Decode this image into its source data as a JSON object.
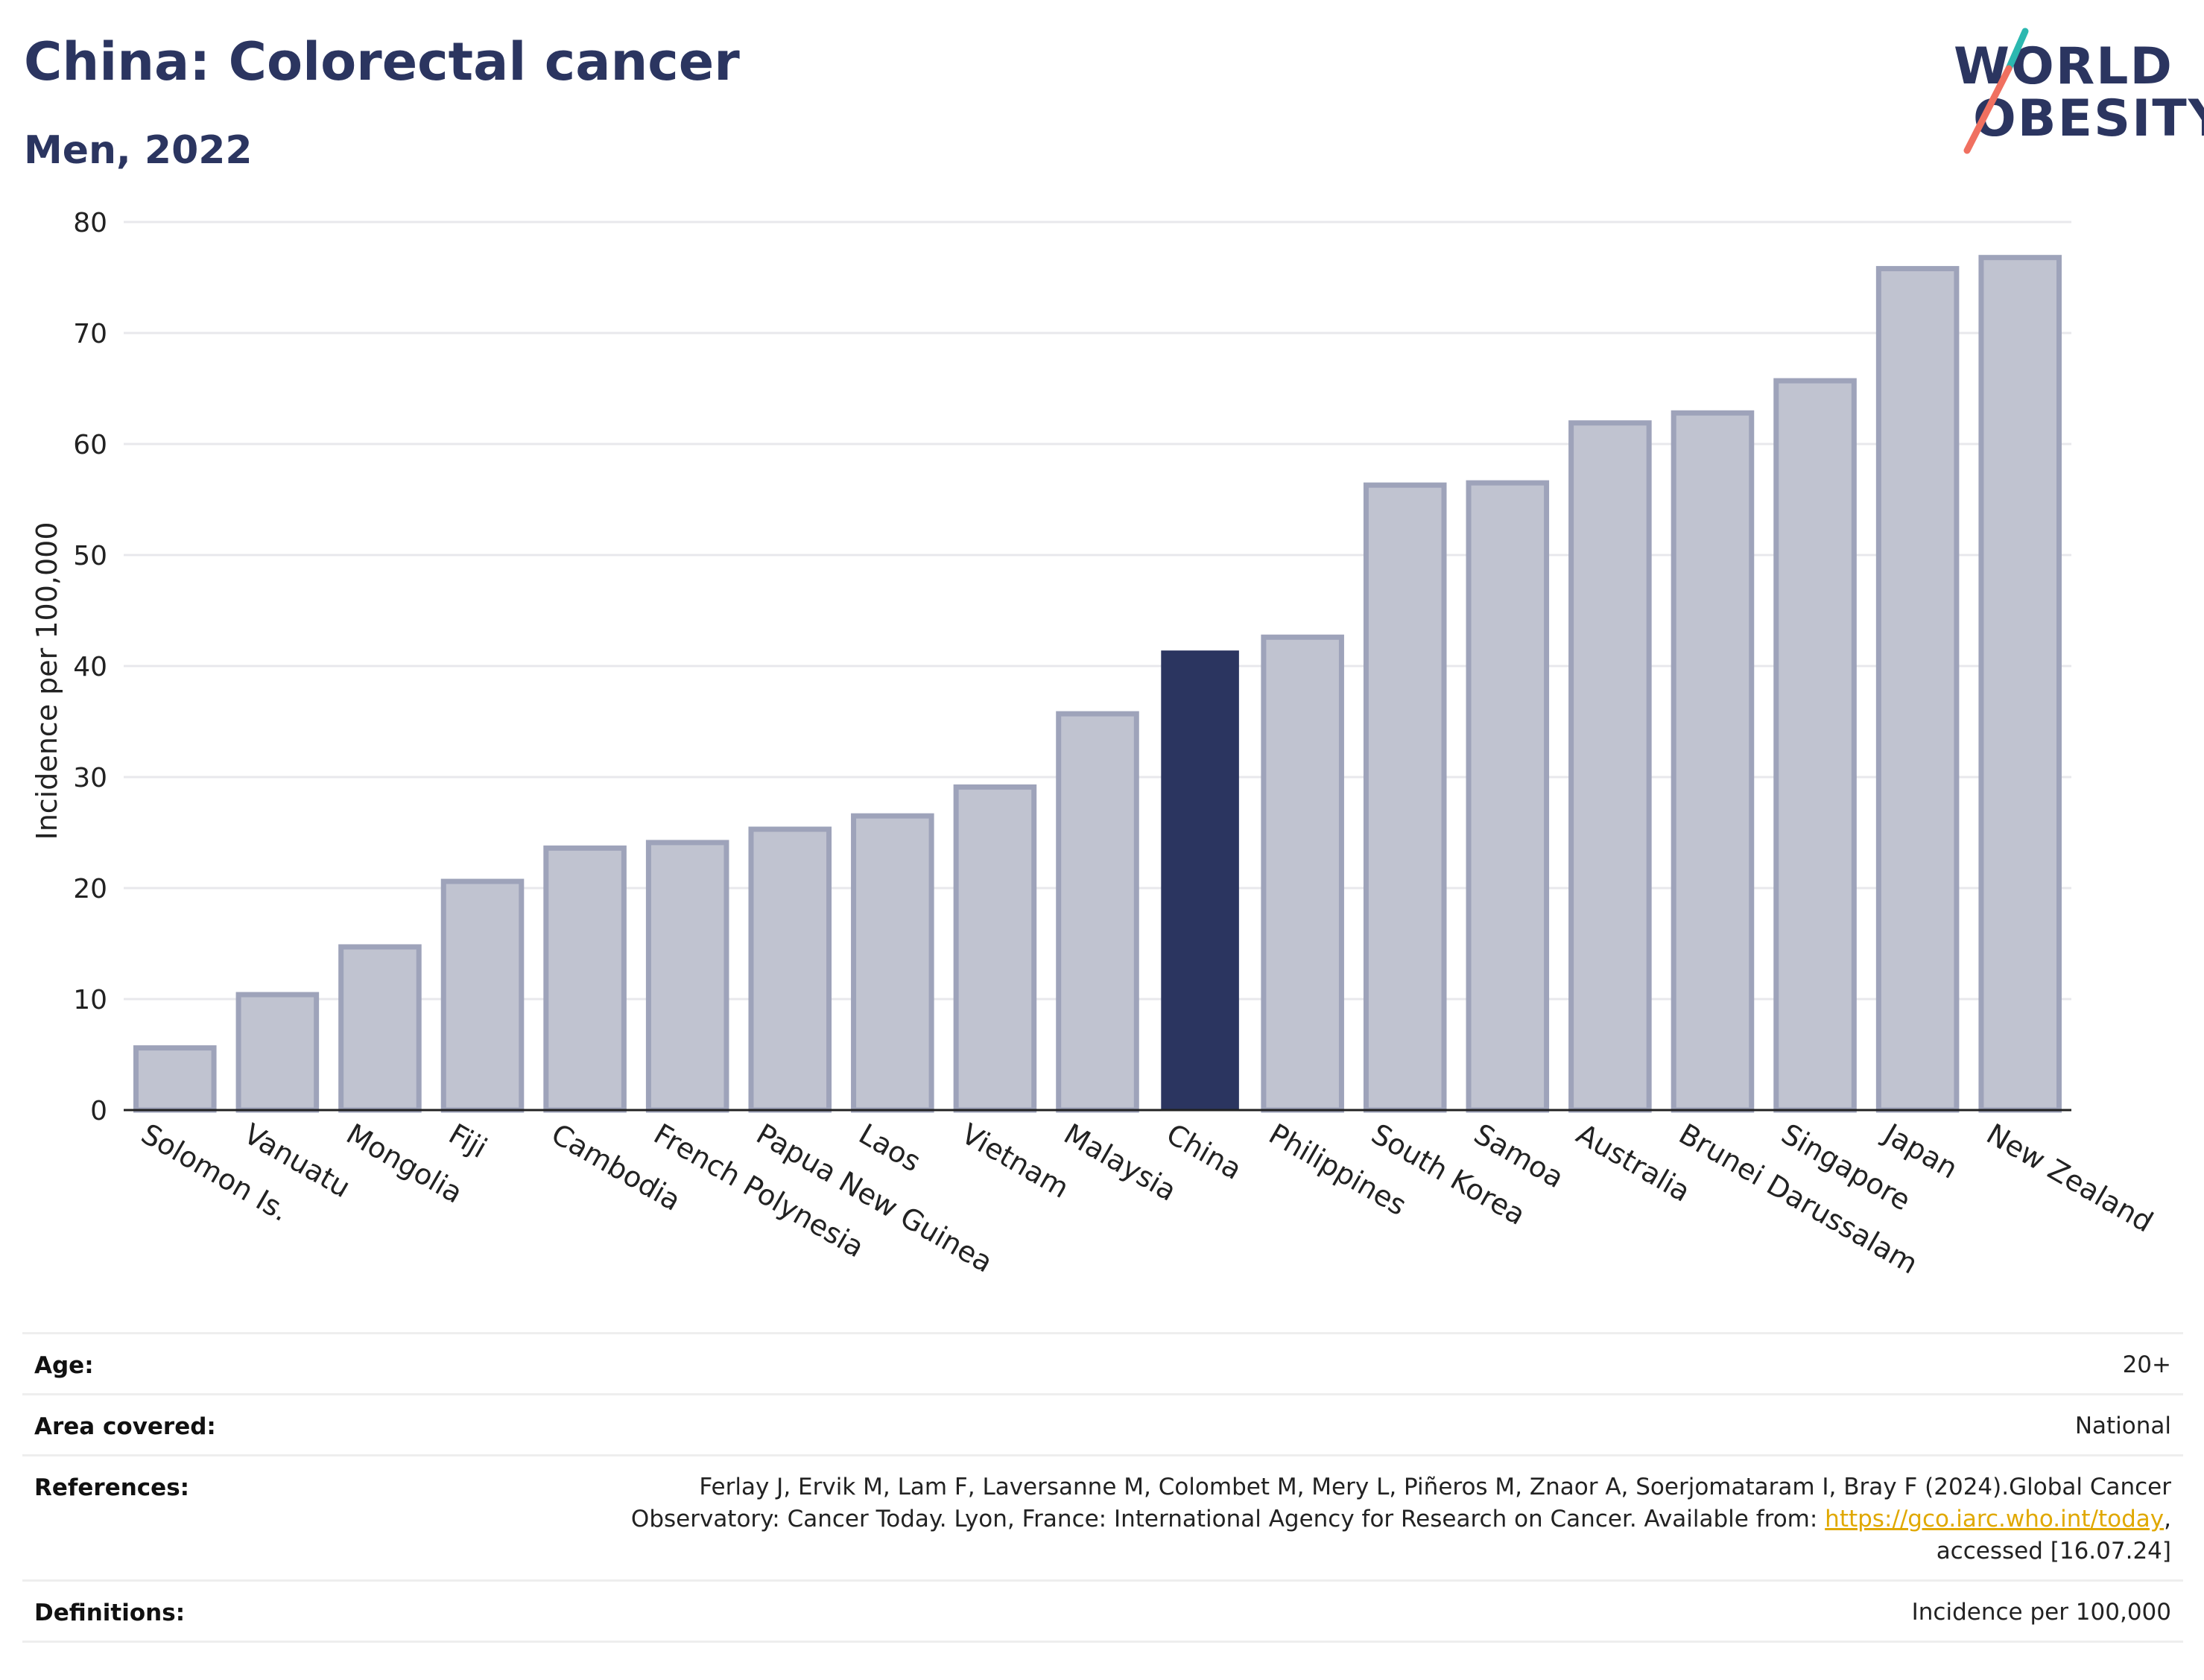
{
  "header": {
    "title": "China: Colorectal cancer",
    "subtitle": "Men, 2022"
  },
  "logo": {
    "line1": "WORLD",
    "line2": "OBESITY",
    "colors": {
      "text": "#2b3560",
      "teal": "#2cb8b0",
      "coral": "#f07060"
    }
  },
  "chart_data": {
    "type": "bar",
    "categories": [
      "Solomon Is.",
      "Vanuatu",
      "Mongolia",
      "Fiji",
      "Cambodia",
      "French Polynesia",
      "Papua New Guinea",
      "Laos",
      "Vietnam",
      "Malaysia",
      "China",
      "Philippines",
      "South Korea",
      "Samoa",
      "Australia",
      "Brunei Darussalam",
      "Singapore",
      "Japan",
      "New Zealand"
    ],
    "values": [
      5.6,
      10.4,
      14.7,
      20.6,
      23.6,
      24.1,
      25.3,
      26.5,
      29.1,
      35.7,
      41.4,
      42.6,
      56.3,
      56.5,
      61.9,
      62.8,
      65.7,
      75.8,
      76.8
    ],
    "highlight": "China",
    "ylabel": "Incidence per 100,000",
    "xlabel": "",
    "ylim": [
      0,
      80
    ],
    "yticks": [
      0,
      10,
      20,
      30,
      40,
      50,
      60,
      70,
      80
    ],
    "grid": true,
    "colors": {
      "bar": "#c0c3d0",
      "bar_edge": "#9ea3ba",
      "highlight": "#2b3560",
      "grid": "#e8e8ec"
    }
  },
  "info": {
    "rows": [
      {
        "label": "Age:",
        "value": "20+"
      },
      {
        "label": "Area covered:",
        "value": "National"
      },
      {
        "label": "References:",
        "value_line1": "Ferlay J, Ervik M, Lam F, Laversanne M, Colombet M, Mery L, Piñeros M, Znaor A, Soerjomataram I, Bray F (2024).Global Cancer",
        "value_line2_pre": "Observatory: Cancer Today. Lyon, France: International Agency for Research on Cancer. Available from: ",
        "value_link": "https://gco.iarc.who.int/today",
        "value_line2_post": ",",
        "value_line3": "accessed [16.07.24]"
      },
      {
        "label": "Definitions:",
        "value": "Incidence per 100,000"
      }
    ]
  }
}
